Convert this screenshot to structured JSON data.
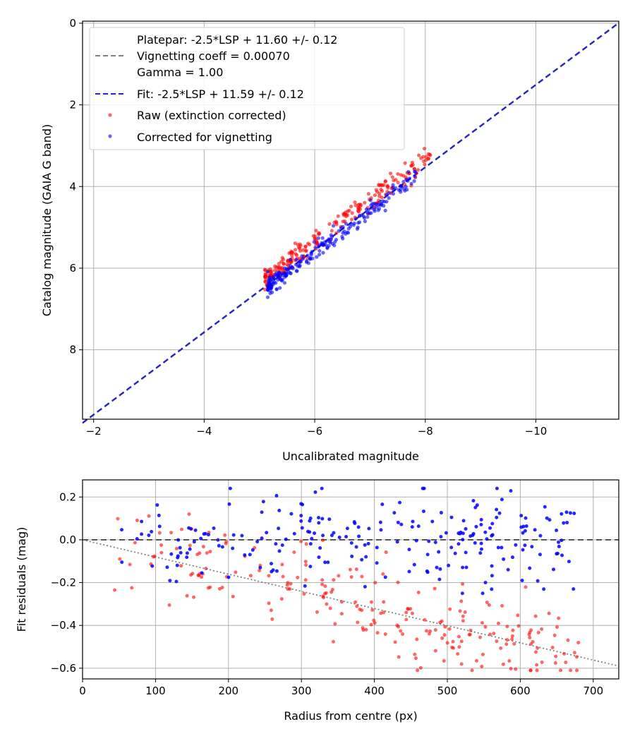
{
  "colors": {
    "raw": "#ff0000",
    "corrected": "#0000ff",
    "fit_line": "#2222cc",
    "platepar_line": "#808080",
    "grid": "#b0b0b0"
  },
  "chart_data": [
    {
      "type": "scatter",
      "xlabel": "Uncalibrated magnitude",
      "ylabel": "Catalog magnitude (GAIA G band)",
      "xlim": [
        -1.8,
        -11.5
      ],
      "ylim": [
        9.7,
        -0.05
      ],
      "x_ticks": [
        -2,
        -4,
        -6,
        -8,
        -10
      ],
      "x_tick_labels": [
        "−2",
        "−4",
        "−6",
        "−8",
        "−10"
      ],
      "y_ticks": [
        0,
        2,
        4,
        6,
        8
      ],
      "y_tick_labels": [
        "0",
        "2",
        "4",
        "6",
        "8"
      ],
      "grid": true,
      "legend_position": "top-left",
      "legend": [
        {
          "label_lines": [
            "Platepar: -2.5*LSP + 11.60 +/- 0.12",
            "Vignetting coeff = 0.00070",
            "Gamma = 1.00"
          ],
          "style": "dashed-gray"
        },
        {
          "label_lines": [
            "Fit: -2.5*LSP + 11.59 +/- 0.12"
          ],
          "style": "dashed-blue"
        },
        {
          "label_lines": [
            "Raw (extinction corrected)"
          ],
          "style": "red-dot"
        },
        {
          "label_lines": [
            "Corrected for vignetting"
          ],
          "style": "blue-dot"
        }
      ],
      "lines": [
        {
          "name": "Platepar",
          "points": [
            [
              -1.8,
              9.8
            ],
            [
              -11.5,
              0.0
            ]
          ],
          "color": "#808080"
        },
        {
          "name": "Fit",
          "points": [
            [
              -1.8,
              9.79
            ],
            [
              -11.5,
              -0.01
            ]
          ],
          "color": "#2222cc"
        }
      ],
      "series": [
        {
          "name": "Raw (extinction corrected)",
          "color": "#ff0000",
          "approx_point_count": 220,
          "x_range": [
            -5.0,
            -8.2
          ],
          "y_range": [
            3.1,
            6.6
          ]
        },
        {
          "name": "Corrected for vignetting",
          "color": "#0000ff",
          "approx_point_count": 220,
          "x_range": [
            -5.1,
            -8.0
          ],
          "y_range": [
            3.5,
            6.6
          ]
        }
      ]
    },
    {
      "type": "scatter",
      "xlabel": "Radius from centre (px)",
      "ylabel": "Fit residuals (mag)",
      "xlim": [
        0,
        735
      ],
      "ylim": [
        -0.65,
        0.28
      ],
      "x_ticks": [
        0,
        100,
        200,
        300,
        400,
        500,
        600,
        700
      ],
      "x_tick_labels": [
        "0",
        "100",
        "200",
        "300",
        "400",
        "500",
        "600",
        "700"
      ],
      "y_ticks": [
        0.2,
        0.0,
        -0.2,
        -0.4,
        -0.6
      ],
      "y_tick_labels": [
        "0.2",
        "0.0",
        "−0.2",
        "−0.4",
        "−0.6"
      ],
      "grid": true,
      "lines": [
        {
          "name": "zero",
          "points": [
            [
              0,
              0
            ],
            [
              735,
              0
            ]
          ],
          "style": "dashed",
          "color": "#404040"
        },
        {
          "name": "vignetting trend",
          "points": [
            [
              0,
              0
            ],
            [
              735,
              -0.59
            ]
          ],
          "style": "dotted",
          "color": "#808080"
        }
      ],
      "series": [
        {
          "name": "Raw (extinction corrected)",
          "color": "#ff0000",
          "approx_point_count": 230,
          "x_range": [
            40,
            680
          ],
          "y_range": [
            -0.61,
            0.12
          ]
        },
        {
          "name": "Corrected for vignetting",
          "color": "#0000ff",
          "approx_point_count": 230,
          "x_range": [
            40,
            675
          ],
          "y_range": [
            -0.25,
            0.24
          ]
        }
      ]
    }
  ]
}
